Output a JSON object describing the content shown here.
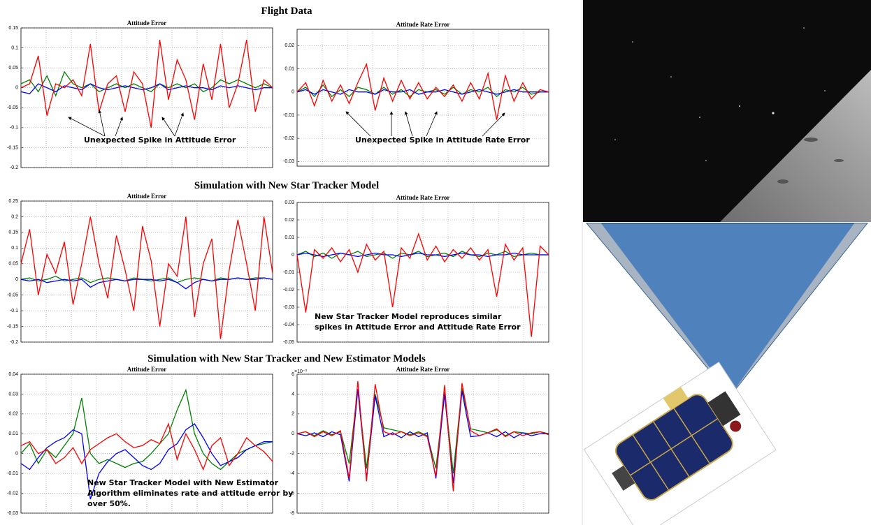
{
  "headings": [
    "Flight Data",
    "Simulation with New Star Tracker Model",
    "Simulation with New Star Tracker and New Estimator Models"
  ],
  "chart_data": [
    {
      "type": "line",
      "title": "Attitude Error",
      "ylim": [
        -0.2,
        0.15
      ],
      "yticks": [
        -0.2,
        -0.15,
        -0.1,
        -0.05,
        0,
        0.05,
        0.1,
        0.15
      ],
      "grid": true,
      "annotation": [
        "Unexpected Spike in Attitude Error"
      ],
      "series": [
        {
          "color": "#008000",
          "values": [
            0.01,
            0.02,
            -0.01,
            0.03,
            -0.02,
            0.04,
            0.01,
            0,
            0.01,
            -0.01,
            0,
            0.01,
            0,
            0.01,
            0,
            -0.01,
            0.01,
            0,
            0.01,
            0,
            0.01,
            -0.01,
            0,
            0.02,
            0.01,
            0.02,
            0.01,
            0,
            0.01,
            0
          ]
        },
        {
          "color": "#0000ff",
          "values": [
            -0.01,
            -0.015,
            0.01,
            0,
            -0.01,
            0.005,
            0,
            -0.005,
            0.01,
            0,
            -0.005,
            0,
            0.005,
            0,
            -0.005,
            0,
            0.01,
            -0.005,
            0,
            0.005,
            0,
            0,
            -0.005,
            0.005,
            0,
            0.005,
            0,
            -0.005,
            0,
            0
          ]
        },
        {
          "color": "#ff0000",
          "values": [
            0,
            0.01,
            0.08,
            -0.07,
            0.01,
            0,
            0.02,
            -0.02,
            0.11,
            -0.06,
            0.01,
            0.03,
            -0.06,
            0.04,
            0.01,
            -0.1,
            0.12,
            -0.03,
            0.07,
            0.02,
            -0.08,
            0.06,
            -0.03,
            0.11,
            -0.05,
            0.01,
            0.12,
            -0.06,
            0.02,
            0
          ]
        }
      ]
    },
    {
      "type": "line",
      "title": "Attitude Rate Error",
      "ylim": [
        -0.032,
        0.027
      ],
      "yticks": [
        -0.03,
        -0.02,
        -0.01,
        0,
        0.01,
        0.02
      ],
      "grid": true,
      "annotation": [
        "Unexpected Spike in Attitude Rate Error"
      ],
      "series": [
        {
          "color": "#008000",
          "values": [
            0,
            0.002,
            -0.002,
            0.003,
            -0.002,
            0.001,
            -0.002,
            0.002,
            0.001,
            -0.001,
            0.002,
            -0.001,
            0.001,
            -0.002,
            0.001,
            0,
            0.001,
            -0.001,
            0.002,
            -0.001,
            0.001,
            0,
            0.002,
            -0.002,
            0.001,
            0,
            0.002,
            -0.001,
            0,
            0
          ]
        },
        {
          "color": "#0000ff",
          "values": [
            0,
            0.001,
            -0.001,
            0.001,
            0,
            -0.001,
            0.001,
            0,
            0,
            -0.001,
            0.001,
            0,
            0,
            0.001,
            -0.001,
            0,
            0,
            0.001,
            0,
            -0.001,
            0,
            0.001,
            0,
            -0.001,
            0,
            0.001,
            0,
            0,
            0,
            0
          ]
        },
        {
          "color": "#ff0000",
          "values": [
            0,
            0.004,
            -0.006,
            0.005,
            -0.004,
            0.003,
            -0.005,
            0.004,
            0.012,
            -0.008,
            0.006,
            -0.004,
            0.005,
            -0.003,
            0.004,
            -0.003,
            0.002,
            -0.002,
            0.003,
            -0.004,
            0.004,
            -0.003,
            0.008,
            -0.012,
            0.007,
            -0.004,
            0.004,
            -0.003,
            0.001,
            0
          ]
        }
      ]
    },
    {
      "type": "line",
      "title": "Attitude Error",
      "ylim": [
        -0.2,
        0.25
      ],
      "yticks": [
        -0.2,
        -0.15,
        -0.1,
        -0.05,
        0,
        0.05,
        0.1,
        0.15,
        0.2,
        0.25
      ],
      "grid": true,
      "series": [
        {
          "color": "#008000",
          "values": [
            0,
            0.005,
            -0.005,
            0,
            0.01,
            -0.005,
            0,
            0.005,
            -0.01,
            0,
            0.005,
            0,
            -0.005,
            0.005,
            0,
            -0.005,
            0,
            0.005,
            -0.01,
            0,
            0.005,
            0,
            -0.005,
            0.005,
            0,
            0.005,
            0,
            0.005,
            0.005,
            0
          ]
        },
        {
          "color": "#0000ff",
          "values": [
            0,
            -0.005,
            0,
            -0.01,
            -0.005,
            0,
            -0.005,
            0,
            -0.025,
            -0.01,
            -0.005,
            0,
            -0.005,
            0,
            0,
            0,
            -0.005,
            0,
            -0.01,
            -0.03,
            -0.01,
            0,
            -0.005,
            0,
            0,
            0.005,
            0,
            0,
            0.005,
            0
          ]
        },
        {
          "color": "#ff0000",
          "values": [
            0.05,
            0.16,
            -0.05,
            0.08,
            0.02,
            0.12,
            -0.08,
            0.05,
            0.2,
            0.05,
            -0.06,
            0.14,
            0.03,
            -0.1,
            0.17,
            0.06,
            -0.15,
            0.05,
            0.01,
            0.2,
            -0.12,
            0.05,
            0.13,
            -0.19,
            0.03,
            0.19,
            0.05,
            -0.1,
            0.2,
            0.02
          ]
        }
      ]
    },
    {
      "type": "line",
      "title": "Attitude Rate Error",
      "ylim": [
        -0.05,
        0.03
      ],
      "yticks": [
        -0.05,
        -0.04,
        -0.03,
        -0.02,
        -0.01,
        0,
        0.01,
        0.02,
        0.03
      ],
      "grid": true,
      "annotation": [
        "New Star Tracker Model reproduces similar",
        "spikes in Attitude Error and Attitude Rate Error"
      ],
      "series": [
        {
          "color": "#008000",
          "values": [
            0,
            0.002,
            -0.001,
            0.001,
            -0.002,
            0.001,
            0,
            0.002,
            -0.001,
            0,
            0.001,
            -0.002,
            0.001,
            0,
            0.002,
            -0.001,
            0,
            0.001,
            -0.001,
            0.002,
            0,
            -0.001,
            0.001,
            0,
            0.002,
            -0.001,
            0,
            0.001,
            0,
            0
          ]
        },
        {
          "color": "#0000ff",
          "values": [
            0,
            0.001,
            0,
            -0.001,
            0,
            0.001,
            0,
            -0.001,
            0,
            0.001,
            0,
            0,
            -0.001,
            0,
            0.001,
            0,
            0,
            -0.001,
            0,
            0.001,
            0,
            0,
            -0.001,
            0,
            0,
            0.001,
            0,
            0,
            0,
            0
          ]
        },
        {
          "color": "#ff0000",
          "values": [
            0,
            -0.033,
            0.003,
            -0.002,
            0.004,
            -0.004,
            0.003,
            -0.01,
            0.006,
            -0.003,
            0.002,
            -0.03,
            0.004,
            -0.002,
            0.012,
            -0.003,
            0.005,
            -0.004,
            0.003,
            -0.002,
            0.004,
            -0.003,
            0.003,
            -0.024,
            0.006,
            -0.003,
            0.004,
            -0.047,
            0.005,
            0
          ]
        }
      ]
    },
    {
      "type": "line",
      "title": "Attitude Error",
      "ylim": [
        -0.03,
        0.04
      ],
      "yticks": [
        -0.03,
        -0.02,
        -0.01,
        0,
        0.01,
        0.02,
        0.03,
        0.04
      ],
      "grid": true,
      "annotation": [
        "New Star Tracker Model with New Estimator",
        "Algorithm eliminates rate and attitude error by",
        "over 50%."
      ],
      "series": [
        {
          "color": "#008000",
          "values": [
            0,
            0.005,
            -0.005,
            0.002,
            -0.002,
            0.004,
            0.01,
            0.028,
            0,
            -0.005,
            -0.003,
            -0.005,
            -0.007,
            -0.005,
            -0.004,
            0,
            0.005,
            0.01,
            0.022,
            0.032,
            0.01,
            0,
            -0.005,
            -0.008,
            -0.004,
            0,
            0.002,
            0.004,
            0.005,
            0.006
          ]
        },
        {
          "color": "#0000ff",
          "values": [
            -0.005,
            -0.008,
            -0.002,
            0.003,
            0.006,
            0.008,
            0.012,
            0.01,
            -0.023,
            -0.01,
            -0.004,
            0,
            0.002,
            -0.002,
            -0.006,
            -0.008,
            -0.005,
            0.002,
            0.005,
            0.012,
            0.015,
            0.008,
            0,
            -0.006,
            -0.004,
            -0.002,
            0.002,
            0.004,
            0.006,
            0.006
          ]
        },
        {
          "color": "#ff0000",
          "values": [
            0.004,
            0.006,
            0,
            0.002,
            -0.005,
            -0.002,
            0.003,
            -0.005,
            0.002,
            0.005,
            0.008,
            0.01,
            0.006,
            0.003,
            0.004,
            0.007,
            0.005,
            0.015,
            -0.003,
            0.01,
            0.002,
            -0.008,
            0.004,
            0.008,
            -0.006,
            0,
            0.008,
            0.004,
            0.001,
            -0.004
          ]
        }
      ]
    },
    {
      "type": "line",
      "title": "Attitude Rate Error",
      "y_multiplier": "×10⁻³",
      "ylim": [
        -8,
        6
      ],
      "yticks": [
        -8,
        -6,
        -4,
        -2,
        0,
        2,
        4,
        6
      ],
      "grid": true,
      "series": [
        {
          "color": "#008000",
          "values": [
            0,
            0.2,
            -0.2,
            0.3,
            -0.1,
            0.2,
            -3,
            4.5,
            -3.5,
            4,
            0.6,
            0.4,
            0.2,
            -0.1,
            0.2,
            -0.2,
            -3.5,
            4.2,
            -4,
            4.6,
            0.5,
            0.3,
            0.1,
            0.4,
            -0.2,
            0.2,
            0.1,
            0,
            0.2,
            0
          ]
        },
        {
          "color": "#0000ff",
          "values": [
            0,
            -0.2,
            0.1,
            -0.3,
            0.2,
            -0.1,
            -4.8,
            4.5,
            -4.5,
            3.8,
            -0.3,
            0.1,
            -0.4,
            0.2,
            -0.3,
            0.1,
            -4.5,
            4,
            -5,
            4.3,
            -0.3,
            -0.2,
            0.1,
            -0.3,
            0.2,
            -0.4,
            0.1,
            -0.2,
            0,
            0
          ]
        },
        {
          "color": "#ff0000",
          "values": [
            0,
            0.2,
            -0.3,
            0.2,
            -0.2,
            0.3,
            -4.5,
            5.3,
            -4.8,
            5,
            0.2,
            -0.1,
            0.2,
            -0.2,
            0.1,
            -0.3,
            -4.3,
            4.9,
            -5.8,
            5.1,
            0.3,
            -0.2,
            0.1,
            0.5,
            -0.3,
            0.2,
            -0.2,
            0.1,
            0.2,
            -0.1
          ]
        }
      ]
    }
  ]
}
